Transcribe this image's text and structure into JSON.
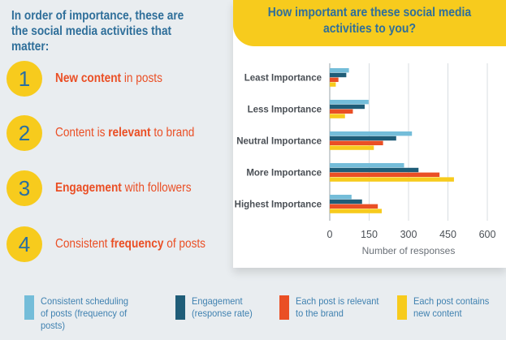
{
  "intro": {
    "heading": "In order of importance, these are the social media activities that matter:"
  },
  "ranking": [
    {
      "number": "1",
      "pre": "",
      "bold": "New content",
      "post": " in posts"
    },
    {
      "number": "2",
      "pre": "Content is ",
      "bold": "relevant",
      "post": " to brand"
    },
    {
      "number": "3",
      "pre": "",
      "bold": "Engagement",
      "post": " with followers"
    },
    {
      "number": "4",
      "pre": "Consistent ",
      "bold": "frequency",
      "post": " of posts"
    }
  ],
  "chart_data": {
    "type": "bar",
    "orientation": "horizontal",
    "title": "How important are these social media activities to you?",
    "xlabel": "Number of responses",
    "ylabel": "",
    "xlim": [
      0,
      600
    ],
    "xticks": [
      0,
      150,
      300,
      450,
      600
    ],
    "grid": true,
    "legend_position": "bottom",
    "categories": [
      "Least Importance",
      "Less Importance",
      "Neutral Importance",
      "More Importance",
      "Highest Importance"
    ],
    "series": [
      {
        "name": "Consistent scheduling of posts (frequency of posts)",
        "color": "#74bdd9",
        "values": [
          73,
          148,
          313,
          283,
          83
        ]
      },
      {
        "name": "Engagement (response rate)",
        "color": "#1f5d78",
        "values": [
          63,
          133,
          253,
          338,
          123
        ]
      },
      {
        "name": "Each post is relevant to the brand",
        "color": "#ea4f25",
        "values": [
          33,
          88,
          203,
          418,
          183
        ]
      },
      {
        "name": "Each post contains new content",
        "color": "#f7cb1d",
        "values": [
          23,
          58,
          168,
          473,
          198
        ]
      }
    ]
  },
  "legend": [
    {
      "line1": "Consistent scheduling",
      "line2": "of posts (frequency of posts)"
    },
    {
      "line1": "Engagement",
      "line2": "(response rate)"
    },
    {
      "line1": "Each post is relevant",
      "line2": "to the brand"
    },
    {
      "line1": "Each post contains",
      "line2": "new content"
    }
  ]
}
